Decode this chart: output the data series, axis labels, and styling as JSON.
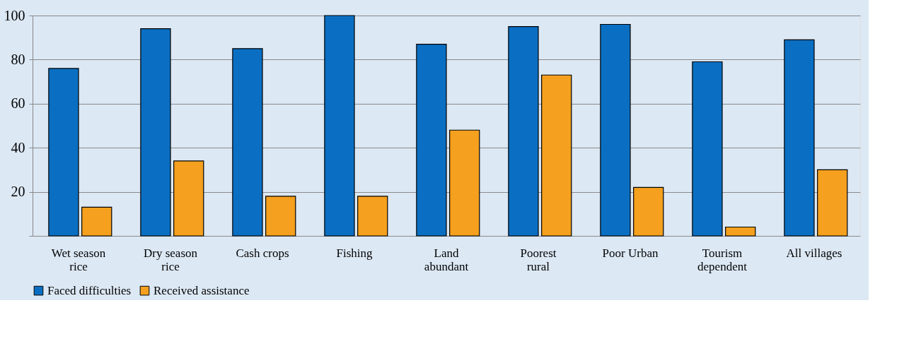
{
  "chart_data": {
    "type": "bar",
    "categories": [
      "Wet season\nrice",
      "Dry season\nrice",
      "Cash crops",
      "Fishing",
      "Land\nabundant",
      "Poorest\nrural",
      "Poor Urban",
      "Tourism\ndependent",
      "All villages"
    ],
    "series": [
      {
        "name": "Faced difficulties",
        "color": "#0a6fc2",
        "values": [
          76,
          94,
          85,
          100,
          87,
          95,
          96,
          79,
          89
        ]
      },
      {
        "name": "Received assistance",
        "color": "#f5a01e",
        "values": [
          13,
          34,
          18,
          18,
          48,
          73,
          22,
          4,
          30
        ]
      }
    ],
    "ylim": [
      0,
      100
    ],
    "yticks": [
      {
        "value": 0,
        "label": null
      },
      20,
      40,
      60,
      80,
      100
    ],
    "grid": "y",
    "legend": "bottom"
  }
}
